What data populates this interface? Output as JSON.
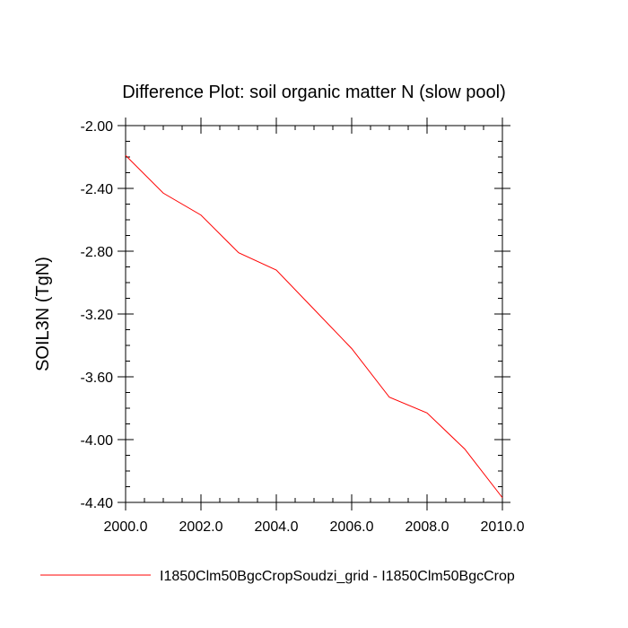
{
  "chart_data": {
    "type": "line",
    "title": "Difference Plot: soil organic matter N (slow pool)",
    "xlabel": "",
    "ylabel": "SOIL3N  (TgN)",
    "xlim": [
      2000.0,
      2010.0
    ],
    "ylim": [
      -4.4,
      -2.0
    ],
    "x_ticks": [
      "2000.0",
      "2002.0",
      "2004.0",
      "2006.0",
      "2008.0",
      "2010.0"
    ],
    "y_ticks": [
      "-2.00",
      "-2.40",
      "-2.80",
      "-3.20",
      "-3.60",
      "-4.00",
      "-4.40"
    ],
    "grid": false,
    "legend_position": "bottom",
    "series": [
      {
        "name": "I1850Clm50BgcCropSoudzi_grid - I1850Clm50BgcCrop",
        "color": "#ff0000",
        "x": [
          2000,
          2001,
          2002,
          2003,
          2004,
          2005,
          2006,
          2007,
          2008,
          2009,
          2010
        ],
        "y": [
          -2.19,
          -2.43,
          -2.57,
          -2.81,
          -2.92,
          -3.17,
          -3.42,
          -3.73,
          -3.83,
          -4.06,
          -4.37
        ]
      }
    ]
  }
}
